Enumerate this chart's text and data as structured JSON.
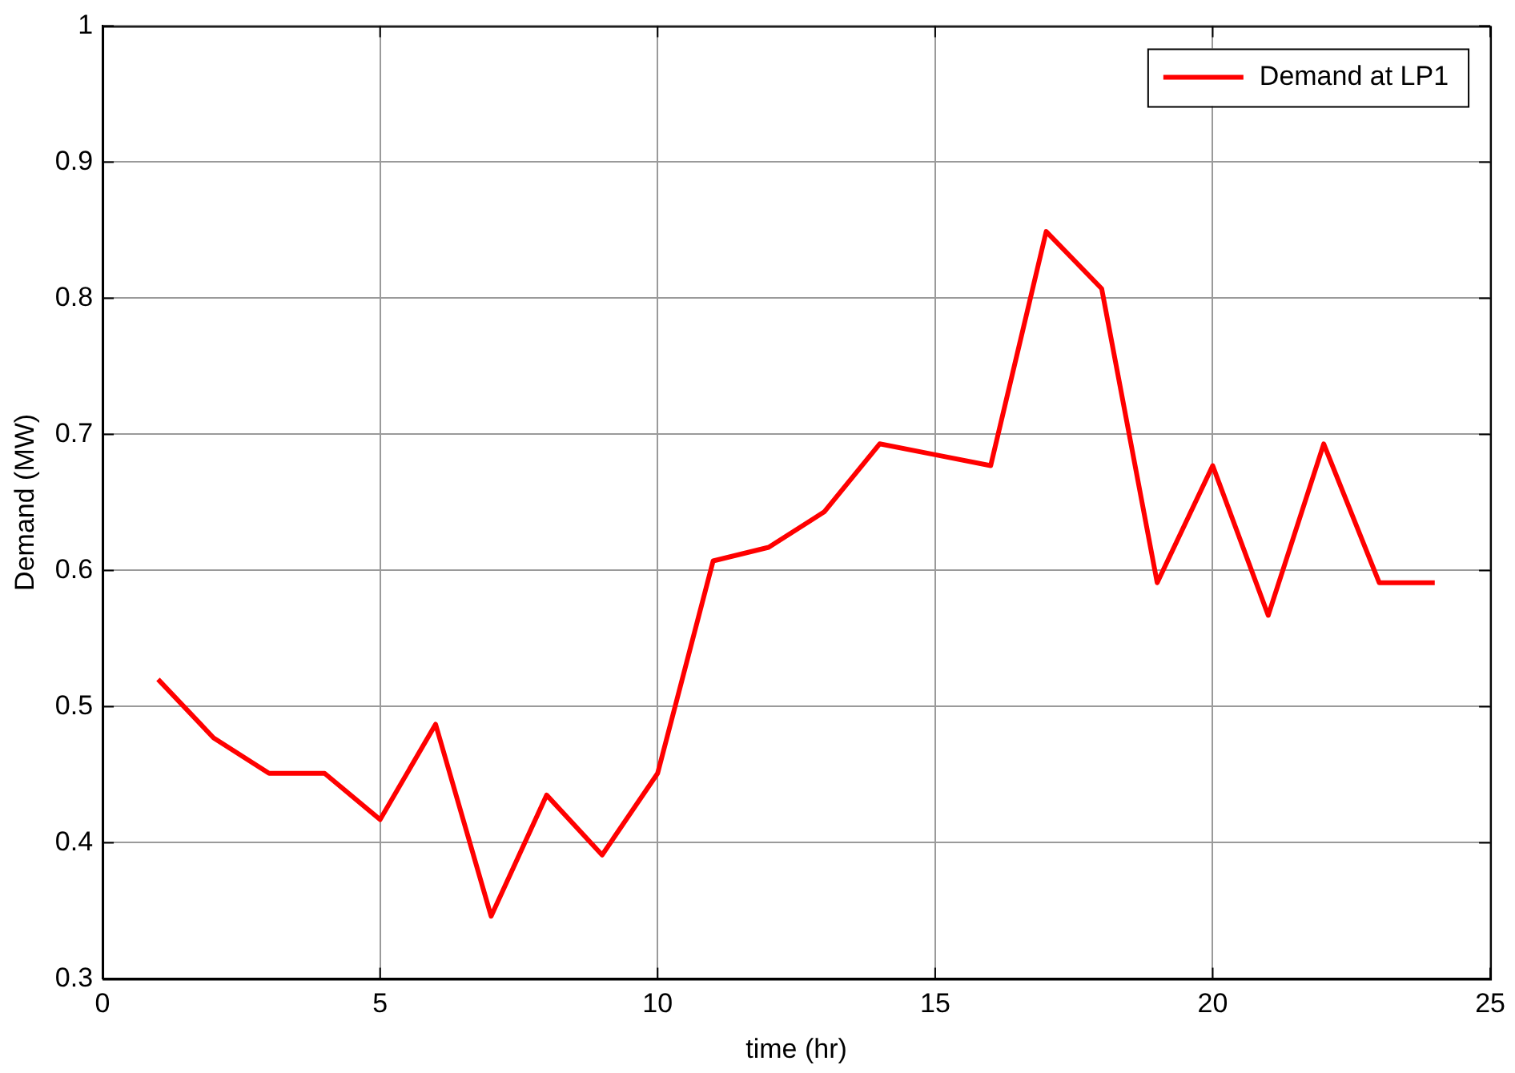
{
  "chart_data": {
    "type": "line",
    "xlabel": "time (hr)",
    "ylabel": "Demand (MW)",
    "x": [
      1,
      2,
      3,
      4,
      5,
      6,
      7,
      8,
      9,
      10,
      11,
      12,
      13,
      14,
      15,
      16,
      17,
      18,
      19,
      20,
      21,
      22,
      23,
      24
    ],
    "series": [
      {
        "name": "Demand at LP1",
        "color": "#ff0000",
        "values": [
          0.52,
          0.477,
          0.451,
          0.451,
          0.417,
          0.487,
          0.346,
          0.435,
          0.391,
          0.451,
          0.607,
          0.617,
          0.643,
          0.693,
          0.685,
          0.677,
          0.849,
          0.807,
          0.591,
          0.677,
          0.567,
          0.693,
          0.591,
          0.591
        ]
      }
    ],
    "xlim": [
      0,
      25
    ],
    "xticks": [
      0,
      5,
      10,
      15,
      20,
      25
    ],
    "ylim": [
      0.3,
      1
    ],
    "yticks": [
      0.3,
      0.4,
      0.5,
      0.6,
      0.7,
      0.8,
      0.9,
      1
    ],
    "grid": true,
    "legend": "top right",
    "marker": "none",
    "line_style": "solid"
  }
}
